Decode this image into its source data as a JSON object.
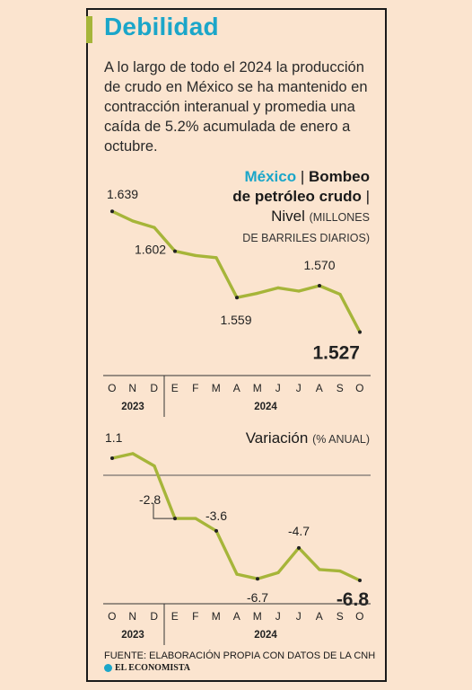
{
  "title": "Debilidad",
  "intro": "A lo largo de todo el 2024 la producción de crudo en México se ha mantenido en contracción interanual y promedia una caída de 5.2% acumulada de enero a octubre.",
  "chart1_title": {
    "country": "México",
    "sep": " | ",
    "name_line1": "Bombeo",
    "name_line2": "de petróleo crudo",
    "sep2": " |",
    "level": "Nivel",
    "unit_line1": "(MILLONES",
    "unit_line2": "DE BARRILES DIARIOS)"
  },
  "chart2_title": {
    "label": "Variación",
    "unit": "(% ANUAL)"
  },
  "source": "FUENTE: ELABORACIÓN PROPIA CON DATOS DE LA CNH",
  "logo_text": "EL ECONOMISTA",
  "colors": {
    "line": "#a6b539",
    "accent": "#1ba6c9",
    "background": "#fbe4cf"
  },
  "chart_data": [
    {
      "type": "line",
      "title": "Bombeo de petróleo crudo",
      "categories": [
        "O",
        "N",
        "D",
        "E",
        "F",
        "M",
        "A",
        "M",
        "J",
        "J",
        "A",
        "S",
        "O"
      ],
      "year_labels": [
        "2023",
        "2024"
      ],
      "values": [
        1.639,
        1.63,
        1.624,
        1.602,
        1.598,
        1.596,
        1.559,
        1.563,
        1.568,
        1.565,
        1.57,
        1.562,
        1.527
      ],
      "ylim": [
        1.52,
        1.645
      ],
      "labels": [
        {
          "index": 0,
          "text": "1.639"
        },
        {
          "index": 3,
          "text": "1.602"
        },
        {
          "index": 6,
          "text": "1.559"
        },
        {
          "index": 10,
          "text": "1.570"
        },
        {
          "index": 12,
          "text": "1.527"
        }
      ]
    },
    {
      "type": "line",
      "title": "Variación",
      "categories": [
        "O",
        "N",
        "D",
        "E",
        "F",
        "M",
        "A",
        "M",
        "J",
        "J",
        "A",
        "S",
        "O"
      ],
      "year_labels": [
        "2023",
        "2024"
      ],
      "values": [
        1.1,
        1.4,
        0.6,
        -2.8,
        -2.8,
        -3.6,
        -6.4,
        -6.7,
        -6.3,
        -4.7,
        -6.1,
        -6.2,
        -6.8
      ],
      "ylim": [
        -7.5,
        1.8
      ],
      "baseline": 0,
      "labels": [
        {
          "index": 0,
          "text": "1.1"
        },
        {
          "index": 3,
          "text": "-2.8"
        },
        {
          "index": 5,
          "text": "-3.6"
        },
        {
          "index": 7,
          "text": "-6.7"
        },
        {
          "index": 9,
          "text": "-4.7"
        },
        {
          "index": 12,
          "text": "-6.8"
        }
      ]
    }
  ]
}
